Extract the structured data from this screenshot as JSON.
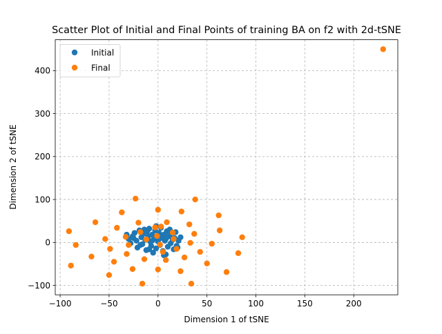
{
  "chart_data": {
    "type": "scatter",
    "title": "Scatter Plot of Initial and Final Points of training BA on f2 with 2d-tSNE",
    "xlabel": "Dimension 1 of tSNE",
    "ylabel": "Dimension 2 of tSNE",
    "xlim": [
      -105,
      245
    ],
    "ylim": [
      -122,
      472
    ],
    "xticks": [
      -100,
      -50,
      0,
      50,
      100,
      150,
      200
    ],
    "yticks": [
      -100,
      0,
      100,
      200,
      300,
      400
    ],
    "grid": true,
    "legend_position": "top-left",
    "series": [
      {
        "name": "Initial",
        "color": "#1f77b4",
        "points": [
          [
            -32,
            18
          ],
          [
            -30,
            8
          ],
          [
            -28,
            -2
          ],
          [
            -26,
            14
          ],
          [
            -24,
            22
          ],
          [
            -22,
            4
          ],
          [
            -21,
            -12
          ],
          [
            -19,
            28
          ],
          [
            -17,
            12
          ],
          [
            -16,
            -4
          ],
          [
            -15,
            20
          ],
          [
            -13,
            6
          ],
          [
            -12,
            -18
          ],
          [
            -11,
            26
          ],
          [
            -10,
            14
          ],
          [
            -9,
            32
          ],
          [
            -8,
            2
          ],
          [
            -7,
            -8
          ],
          [
            -6,
            18
          ],
          [
            -5,
            -24
          ],
          [
            -4,
            8
          ],
          [
            -3,
            28
          ],
          [
            -2,
            -14
          ],
          [
            -1,
            14
          ],
          [
            0,
            2
          ],
          [
            1,
            22
          ],
          [
            2,
            -6
          ],
          [
            3,
            34
          ],
          [
            4,
            10
          ],
          [
            5,
            -20
          ],
          [
            6,
            18
          ],
          [
            7,
            4
          ],
          [
            8,
            -28
          ],
          [
            9,
            26
          ],
          [
            10,
            -10
          ],
          [
            11,
            14
          ],
          [
            12,
            30
          ],
          [
            13,
            -2
          ],
          [
            14,
            20
          ],
          [
            15,
            6
          ],
          [
            16,
            -16
          ],
          [
            17,
            10
          ],
          [
            18,
            24
          ],
          [
            19,
            -8
          ],
          [
            21,
            4
          ],
          [
            23,
            12
          ],
          [
            -18,
            -6
          ],
          [
            -14,
            30
          ],
          [
            -2,
            38
          ],
          [
            6,
            -30
          ],
          [
            -25,
            10
          ],
          [
            20,
            -12
          ],
          [
            -9,
            -16
          ],
          [
            2,
            16
          ],
          [
            8,
            8
          ],
          [
            -6,
            4
          ]
        ]
      },
      {
        "name": "Final",
        "color": "#ff7f0e",
        "points": [
          [
            230,
            450
          ],
          [
            -91,
            26
          ],
          [
            -89,
            -54
          ],
          [
            -84,
            -6
          ],
          [
            -68,
            -33
          ],
          [
            -64,
            47
          ],
          [
            -54,
            8
          ],
          [
            -50,
            -76
          ],
          [
            -49,
            -15
          ],
          [
            -45,
            -45
          ],
          [
            -42,
            34
          ],
          [
            -37,
            70
          ],
          [
            -33,
            13
          ],
          [
            -32,
            -27
          ],
          [
            -30,
            -6
          ],
          [
            -26,
            -62
          ],
          [
            -23,
            102
          ],
          [
            -20,
            46
          ],
          [
            -18,
            24
          ],
          [
            -16,
            -96
          ],
          [
            -14,
            -39
          ],
          [
            -12,
            7
          ],
          [
            -3,
            35
          ],
          [
            -1,
            15
          ],
          [
            0,
            -63
          ],
          [
            0,
            76
          ],
          [
            2,
            -5
          ],
          [
            3,
            37
          ],
          [
            5,
            -22
          ],
          [
            8,
            -41
          ],
          [
            9,
            47
          ],
          [
            15,
            23
          ],
          [
            16,
            8
          ],
          [
            19,
            -15
          ],
          [
            23,
            -67
          ],
          [
            24,
            72
          ],
          [
            27,
            -35
          ],
          [
            32,
            42
          ],
          [
            33,
            -1
          ],
          [
            34,
            -96
          ],
          [
            37,
            20
          ],
          [
            38,
            100
          ],
          [
            43,
            -22
          ],
          [
            50,
            -49
          ],
          [
            55,
            -3
          ],
          [
            62,
            63
          ],
          [
            63,
            28
          ],
          [
            70,
            -69
          ],
          [
            82,
            -25
          ],
          [
            86,
            12
          ]
        ]
      }
    ]
  }
}
